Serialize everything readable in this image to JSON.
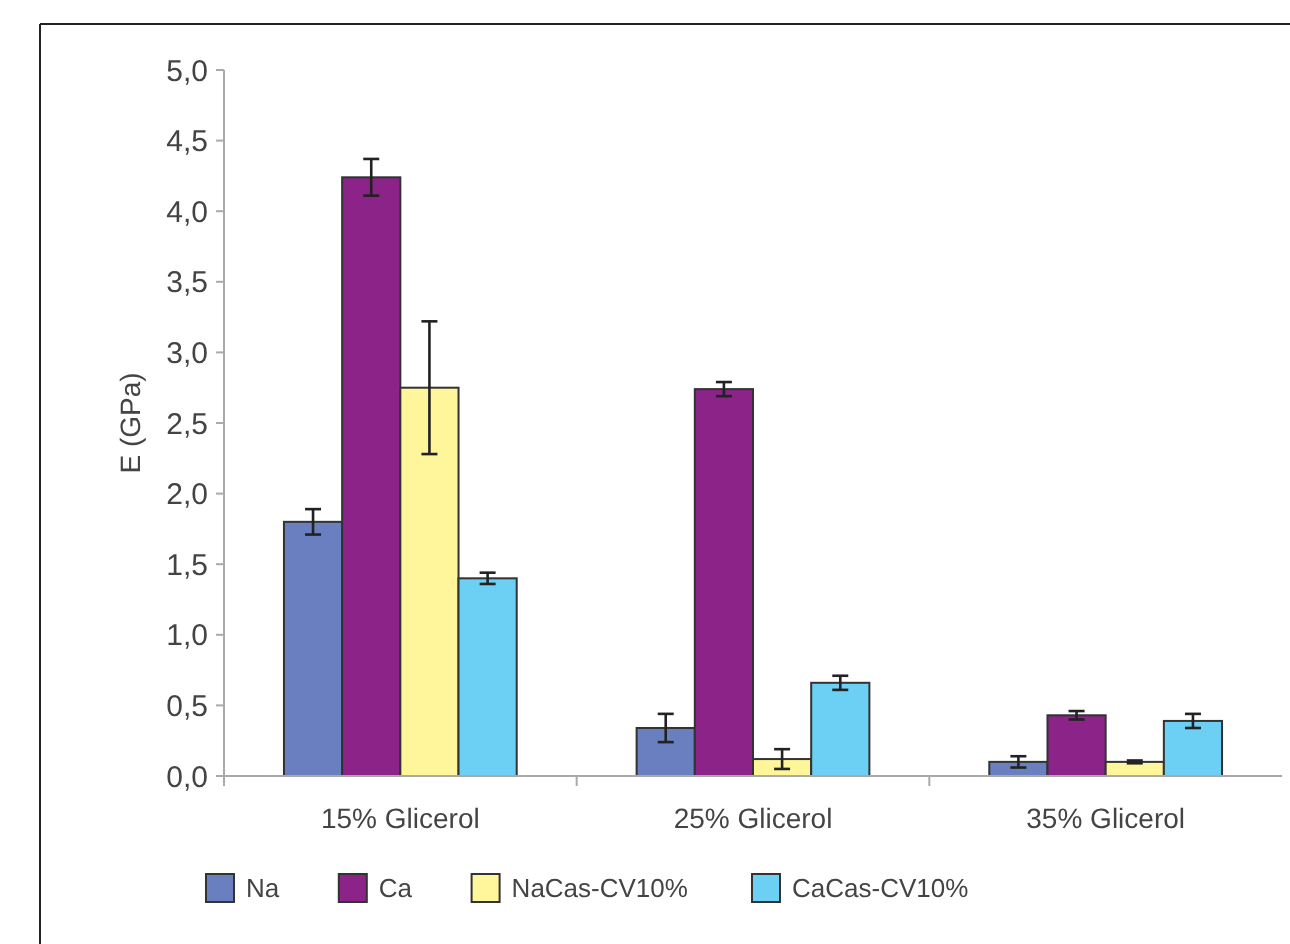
{
  "chart_data": {
    "type": "bar",
    "ylabel": "E (GPa)",
    "categories": [
      "15% Glicerol",
      "25% Glicerol",
      "35% Glicerol"
    ],
    "series": [
      {
        "name": "Na",
        "color": "#6a7fbf",
        "values": [
          1.8,
          0.34,
          0.1
        ],
        "errors": [
          0.09,
          0.1,
          0.04
        ]
      },
      {
        "name": "Ca",
        "color": "#8b2389",
        "values": [
          4.24,
          2.74,
          0.43
        ],
        "errors": [
          0.13,
          0.05,
          0.03
        ]
      },
      {
        "name": "NaCas-CV10%",
        "color": "#fff59a",
        "values": [
          2.75,
          0.12,
          0.1
        ],
        "errors": [
          0.47,
          0.07,
          0.01
        ]
      },
      {
        "name": "CaCas-CV10%",
        "color": "#6bd0f4",
        "values": [
          1.4,
          0.66,
          0.39
        ],
        "errors": [
          0.04,
          0.05,
          0.05
        ]
      }
    ],
    "ylim": [
      0,
      5
    ],
    "yticks": [
      {
        "value": 0,
        "label": "0,0"
      },
      {
        "value": 0.5,
        "label": "0,5"
      },
      {
        "value": 1,
        "label": "1,0"
      },
      {
        "value": 1.5,
        "label": "1,5"
      },
      {
        "value": 2,
        "label": "2,0"
      },
      {
        "value": 2.5,
        "label": "2,5"
      },
      {
        "value": 3,
        "label": "3,0"
      },
      {
        "value": 3.5,
        "label": "3,5"
      },
      {
        "value": 4,
        "label": "4,0"
      },
      {
        "value": 4.5,
        "label": "4,5"
      },
      {
        "value": 5,
        "label": "5,0"
      }
    ],
    "legend": "bottom",
    "grid": false
  }
}
